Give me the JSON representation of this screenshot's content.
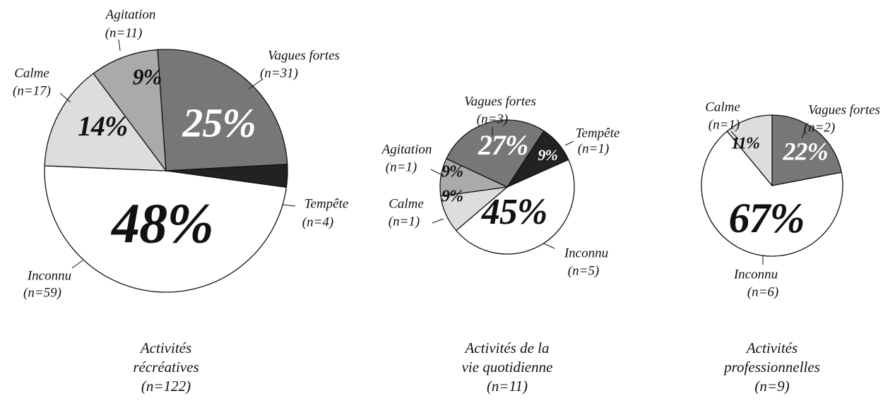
{
  "chart_data": [
    {
      "type": "pie",
      "title_lines": [
        "Activités",
        "récréatives",
        "(n=122)"
      ],
      "categories": [
        "Vagues fortes",
        "Tempête",
        "Inconnu",
        "Calme",
        "Agitation"
      ],
      "count_labels": [
        "(n=31)",
        "(n=4)",
        "(n=59)",
        "(n=17)",
        "(n=11)"
      ],
      "values": [
        25,
        3,
        48,
        14,
        9
      ],
      "value_labels": [
        "25%",
        "3%",
        "48%",
        "14%",
        "9%"
      ],
      "colors": [
        "#777777",
        "#222222",
        "#ffffff",
        "#dddddd",
        "#aaaaaa"
      ]
    },
    {
      "type": "pie",
      "title_lines": [
        "Activités de la",
        "vie quotidienne",
        "(n=11)"
      ],
      "categories": [
        "Vagues fortes",
        "Tempête",
        "Inconnu",
        "Calme",
        "Agitation"
      ],
      "count_labels": [
        "(n=3)",
        "(n=1)",
        "(n=5)",
        "(n=1)",
        "(n=1)"
      ],
      "values": [
        27,
        9,
        45,
        9,
        9
      ],
      "value_labels": [
        "27%",
        "9%",
        "45%",
        "9%",
        "9%"
      ],
      "colors": [
        "#777777",
        "#222222",
        "#ffffff",
        "#dddddd",
        "#aaaaaa"
      ]
    },
    {
      "type": "pie",
      "title_lines": [
        "Activités",
        "professionnelles",
        "(n=9)"
      ],
      "categories": [
        "Vagues fortes",
        "Inconnu",
        "Calme"
      ],
      "count_labels": [
        "(n=2)",
        "(n=6)",
        "(n=1)"
      ],
      "values": [
        22,
        67,
        11
      ],
      "value_labels": [
        "22%",
        "67%",
        "11%"
      ],
      "colors": [
        "#777777",
        "#ffffff",
        "#dddddd"
      ]
    }
  ]
}
